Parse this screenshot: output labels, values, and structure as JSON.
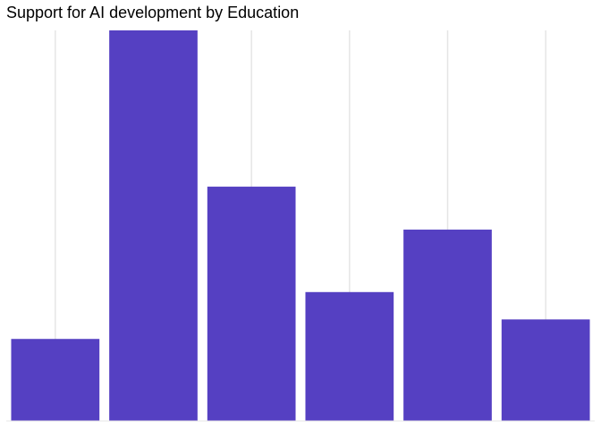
{
  "chart_data": {
    "type": "bar",
    "title": "Support for AI development by Education",
    "xlabel": "",
    "ylabel": "",
    "categories": [
      "",
      "",
      "",
      "",
      "",
      ""
    ],
    "values": [
      0.21,
      1.0,
      0.6,
      0.33,
      0.49,
      0.26
    ],
    "ylim": [
      0,
      1.0
    ],
    "bar_color": "#5540c2",
    "grid_color": "#e5e5e5",
    "grid": "vertical",
    "legend": "none"
  }
}
